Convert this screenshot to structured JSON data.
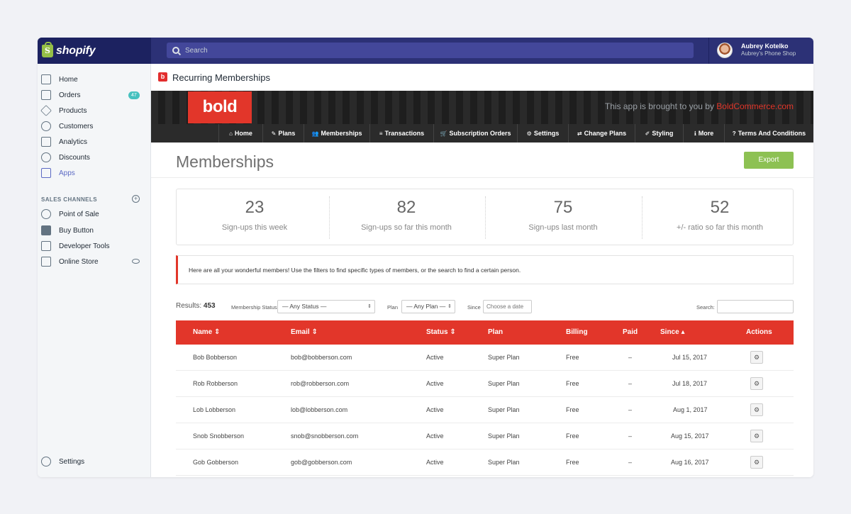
{
  "topbar": {
    "logo": "shopify",
    "search_placeholder": "Search",
    "user_name": "Aubrey Kotelko",
    "user_shop": "Aubrey's Phone Shop"
  },
  "sidebar": {
    "items": [
      {
        "label": "Home",
        "icon": "home-icon"
      },
      {
        "label": "Orders",
        "icon": "orders-icon",
        "badge": "47"
      },
      {
        "label": "Products",
        "icon": "tag-icon"
      },
      {
        "label": "Customers",
        "icon": "person-icon"
      },
      {
        "label": "Analytics",
        "icon": "chart-icon"
      },
      {
        "label": "Discounts",
        "icon": "discount-icon"
      },
      {
        "label": "Apps",
        "icon": "apps-icon",
        "active": true
      }
    ],
    "section_title": "SALES CHANNELS",
    "channels": [
      {
        "label": "Point of Sale",
        "icon": "location-pin-icon"
      },
      {
        "label": "Buy Button",
        "icon": "code-icon"
      },
      {
        "label": "Developer Tools",
        "icon": "dev-tools-icon"
      },
      {
        "label": "Online Store",
        "icon": "store-icon"
      }
    ],
    "settings_label": "Settings"
  },
  "app": {
    "title": "Recurring Memberships",
    "badge_letter": "b",
    "banner_logo": "bold",
    "banner_text": "This app is brought to you by ",
    "banner_link": "BoldCommerce.com",
    "menu": [
      {
        "label": "Home",
        "icon": "⌂"
      },
      {
        "label": "Plans",
        "icon": "✎"
      },
      {
        "label": "Memberships",
        "icon": "👥"
      },
      {
        "label": "Transactions",
        "icon": "≡"
      },
      {
        "label": "Subscription Orders",
        "icon": "🛒"
      },
      {
        "label": "Settings",
        "icon": "⚙"
      },
      {
        "label": "Change Plans",
        "icon": "⇄"
      },
      {
        "label": "Styling",
        "icon": "✐"
      },
      {
        "label": "More",
        "icon": "ℹ"
      },
      {
        "label": "Terms And Conditions",
        "icon": "?"
      }
    ]
  },
  "page": {
    "title": "Memberships",
    "export_label": "Export"
  },
  "stats": [
    {
      "value": "23",
      "caption": "Sign-ups this week"
    },
    {
      "value": "82",
      "caption": "Sign-ups so far this month"
    },
    {
      "value": "75",
      "caption": "Sign-ups last month"
    },
    {
      "value": "52",
      "caption": "+/- ratio so far this month"
    }
  ],
  "notice": "Here are all your wonderful members! Use the filters to find specific types of members, or the search to find a certain person.",
  "filters": {
    "results_label": "Results:",
    "results_count": "453",
    "status_label": "Membership Status",
    "status_value": "— Any Status —",
    "plan_label": "Plan",
    "plan_value": "— Any Plan —",
    "since_label": "Since",
    "since_placeholder": "Choose a date",
    "search_label": "Search:"
  },
  "table": {
    "headers": [
      "Name ⇕",
      "Email ⇕",
      "Status ⇕",
      "Plan",
      "Billing",
      "Paid",
      "Since ▴",
      "Actions"
    ],
    "rows": [
      {
        "name": "Bob Bobberson",
        "email": "bob@bobberson.com",
        "status": "Active",
        "plan": "Super Plan",
        "billing": "Free",
        "paid": "–",
        "since": "Jul 15, 2017"
      },
      {
        "name": "Rob Robberson",
        "email": "rob@robberson.com",
        "status": "Active",
        "plan": "Super Plan",
        "billing": "Free",
        "paid": "–",
        "since": "Jul 18, 2017"
      },
      {
        "name": "Lob Lobberson",
        "email": "lob@lobberson.com",
        "status": "Active",
        "plan": "Super Plan",
        "billing": "Free",
        "paid": "–",
        "since": "Aug 1, 2017"
      },
      {
        "name": "Snob Snobberson",
        "email": "snob@snobberson.com",
        "status": "Active",
        "plan": "Super Plan",
        "billing": "Free",
        "paid": "–",
        "since": "Aug 15, 2017"
      },
      {
        "name": "Gob Gobberson",
        "email": "gob@gobberson.com",
        "status": "Active",
        "plan": "Super Plan",
        "billing": "Free",
        "paid": "–",
        "since": "Aug 16, 2017"
      }
    ],
    "action_icon": "⚙"
  },
  "colors": {
    "shopify_nav": "#2c3176",
    "accent_red": "#e2362a",
    "export_green": "#8dc153",
    "apps_active": "#5c6ac4"
  }
}
